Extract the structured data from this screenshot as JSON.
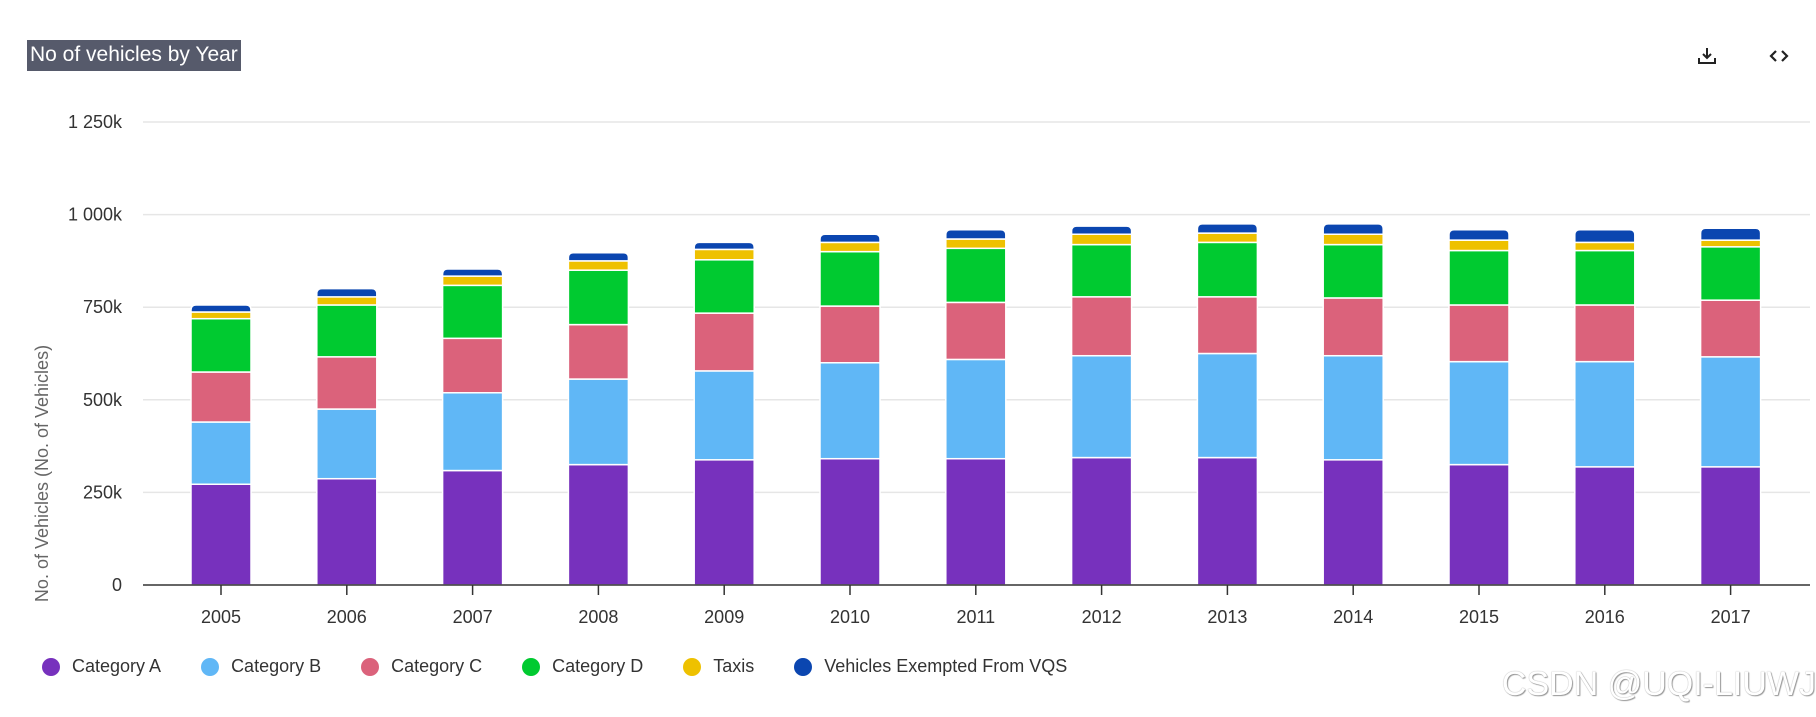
{
  "header": {
    "title": "No of vehicles by Year",
    "download_icon": "download-icon",
    "embed_icon": "code-icon"
  },
  "watermark": "CSDN @UQI-LIUWJ",
  "chart_data": {
    "type": "bar",
    "stacked": true,
    "title": "No of vehicles by Year",
    "xlabel": "",
    "ylabel": "No. of Vehicles (No. of Vehicles)",
    "ylim": [
      0,
      1250000
    ],
    "yticks": [
      0,
      250000,
      500000,
      750000,
      1000000,
      1250000
    ],
    "ytick_labels": [
      "0",
      "250k",
      "500k",
      "750k",
      "1 000k",
      "1 250k"
    ],
    "grid": true,
    "legend_position": "bottom-left",
    "categories": [
      "2005",
      "2006",
      "2007",
      "2008",
      "2009",
      "2010",
      "2011",
      "2012",
      "2013",
      "2014",
      "2015",
      "2016",
      "2017"
    ],
    "series": [
      {
        "name": "Category A",
        "color": "#7731bd",
        "values": [
          272000,
          287000,
          309000,
          325000,
          338000,
          341000,
          341000,
          344000,
          344000,
          338000,
          325000,
          319000,
          319000
        ]
      },
      {
        "name": "Category B",
        "color": "#60b7f6",
        "values": [
          168000,
          188000,
          210000,
          231000,
          240000,
          259000,
          268000,
          275000,
          281000,
          281000,
          278000,
          284000,
          297000
        ]
      },
      {
        "name": "Category C",
        "color": "#db627b",
        "values": [
          135000,
          141000,
          147000,
          147000,
          156000,
          153000,
          154000,
          159000,
          153000,
          156000,
          153000,
          153000,
          153000
        ]
      },
      {
        "name": "Category D",
        "color": "#00ca30",
        "values": [
          144000,
          140000,
          143000,
          147000,
          144000,
          147000,
          146000,
          141000,
          147000,
          144000,
          147000,
          147000,
          144000
        ]
      },
      {
        "name": "Taxis",
        "color": "#eec100",
        "values": [
          18000,
          22000,
          25000,
          25000,
          28000,
          25000,
          25000,
          28000,
          25000,
          28000,
          28000,
          22000,
          18000
        ]
      },
      {
        "name": "Vehicles Exempted From VQS",
        "color": "#0b46b0",
        "values": [
          19000,
          22000,
          19000,
          22000,
          19000,
          22000,
          25000,
          22000,
          25000,
          28000,
          28000,
          34000,
          32000
        ]
      }
    ]
  }
}
